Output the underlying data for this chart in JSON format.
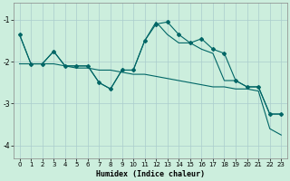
{
  "xlabel": "Humidex (Indice chaleur)",
  "bg_color": "#cceedd",
  "grid_color": "#aacccc",
  "line_color": "#006666",
  "xlim": [
    -0.5,
    23.5
  ],
  "ylim": [
    -4.3,
    -0.6
  ],
  "yticks": [
    -4,
    -3,
    -2,
    -1
  ],
  "xticks": [
    0,
    1,
    2,
    3,
    4,
    5,
    6,
    7,
    8,
    9,
    10,
    11,
    12,
    13,
    14,
    15,
    16,
    17,
    18,
    19,
    20,
    21,
    22,
    23
  ],
  "line1_x": [
    0,
    1,
    2,
    3,
    4,
    5,
    6,
    7,
    8,
    9,
    10,
    11,
    12,
    13,
    14,
    15,
    16,
    17,
    18,
    19,
    20,
    21,
    22,
    23
  ],
  "line1_y": [
    -1.35,
    -2.05,
    -2.05,
    -1.75,
    -2.1,
    -2.1,
    -2.1,
    -2.5,
    -2.65,
    -2.2,
    -2.2,
    -1.5,
    -1.1,
    -1.05,
    -1.35,
    -1.55,
    -1.45,
    -1.7,
    -1.8,
    -2.45,
    -2.6,
    -2.6,
    -3.25,
    -3.25
  ],
  "line2_x": [
    0,
    1,
    2,
    3,
    4,
    5,
    6,
    7,
    8,
    9,
    10,
    11,
    12,
    13,
    14,
    15,
    16,
    17,
    18,
    19,
    20,
    21,
    22,
    23
  ],
  "line2_y": [
    -2.05,
    -2.05,
    -2.05,
    -2.05,
    -2.1,
    -2.15,
    -2.15,
    -2.2,
    -2.2,
    -2.25,
    -2.3,
    -2.3,
    -2.35,
    -2.4,
    -2.45,
    -2.5,
    -2.55,
    -2.6,
    -2.6,
    -2.65,
    -2.65,
    -2.7,
    -3.6,
    -3.75
  ],
  "line3_x": [
    0,
    1,
    2,
    3,
    4,
    5,
    6,
    7,
    8,
    9,
    10,
    11,
    12,
    13,
    14,
    15,
    16,
    17,
    18,
    19,
    20,
    21,
    22,
    23
  ],
  "line3_y": [
    -1.35,
    -2.05,
    -2.05,
    -1.75,
    -2.1,
    -2.1,
    -2.1,
    -2.5,
    -2.65,
    -2.2,
    -2.2,
    -1.5,
    -1.05,
    -1.35,
    -1.55,
    -1.55,
    -1.7,
    -1.8,
    -2.45,
    -2.45,
    -2.6,
    -2.6,
    -3.25,
    -3.25
  ]
}
